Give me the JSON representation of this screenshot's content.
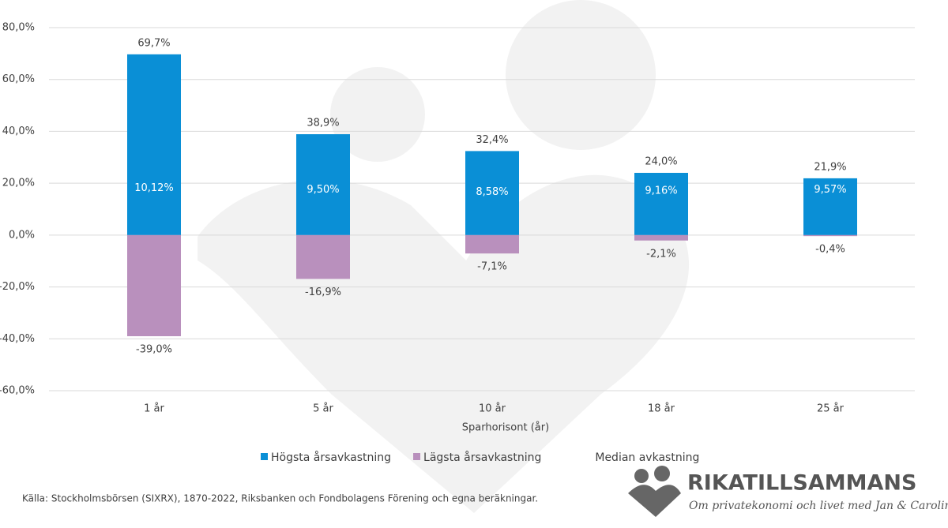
{
  "chart_data": {
    "type": "bar",
    "xlabel": "Sparhorisont (år)",
    "categories": [
      "1 år",
      "5 år",
      "10 år",
      "18 år",
      "25 år"
    ],
    "series": [
      {
        "name": "Högsta årsavkastning",
        "color": "#0a8fd6",
        "values": [
          69.7,
          38.9,
          32.4,
          24.0,
          21.9
        ],
        "value_labels": [
          "69,7%",
          "38,9%",
          "32,4%",
          "24,0%",
          "21,9%"
        ]
      },
      {
        "name": "Lägsta årsavkastning",
        "color": "#b990bd",
        "values": [
          -39.0,
          -16.9,
          -7.1,
          -2.1,
          -0.4
        ],
        "value_labels": [
          "-39,0%",
          "-16,9%",
          "-7,1%",
          "-2,1%",
          "-0,4%"
        ]
      },
      {
        "name": "Median avkastning",
        "values": [
          10.12,
          9.5,
          8.58,
          9.16,
          9.57
        ],
        "value_labels": [
          "10,12%",
          "9,50%",
          "8,58%",
          "9,16%",
          "9,57%"
        ]
      }
    ],
    "ylim": [
      -60,
      80
    ],
    "yticks": [
      {
        "value": -60,
        "label": "-60,0%"
      },
      {
        "value": -40,
        "label": "-40,0%"
      },
      {
        "value": -20,
        "label": "-20,0%"
      },
      {
        "value": 0,
        "label": "0,0%"
      },
      {
        "value": 20,
        "label": "20,0%"
      },
      {
        "value": 40,
        "label": "40,0%"
      },
      {
        "value": 60,
        "label": "60,0%"
      },
      {
        "value": 80,
        "label": "80,0%"
      }
    ],
    "grid": true,
    "source": "Källa: Stockholmsbörsen (SIXRX), 1870-2022, Riksbanken och Fondbolagens Förening och egna beräkningar."
  },
  "logo": {
    "name": "RIKATILLSAMMANS",
    "tagline": "Om privatekonomi och livet med Jan & Caroline"
  }
}
